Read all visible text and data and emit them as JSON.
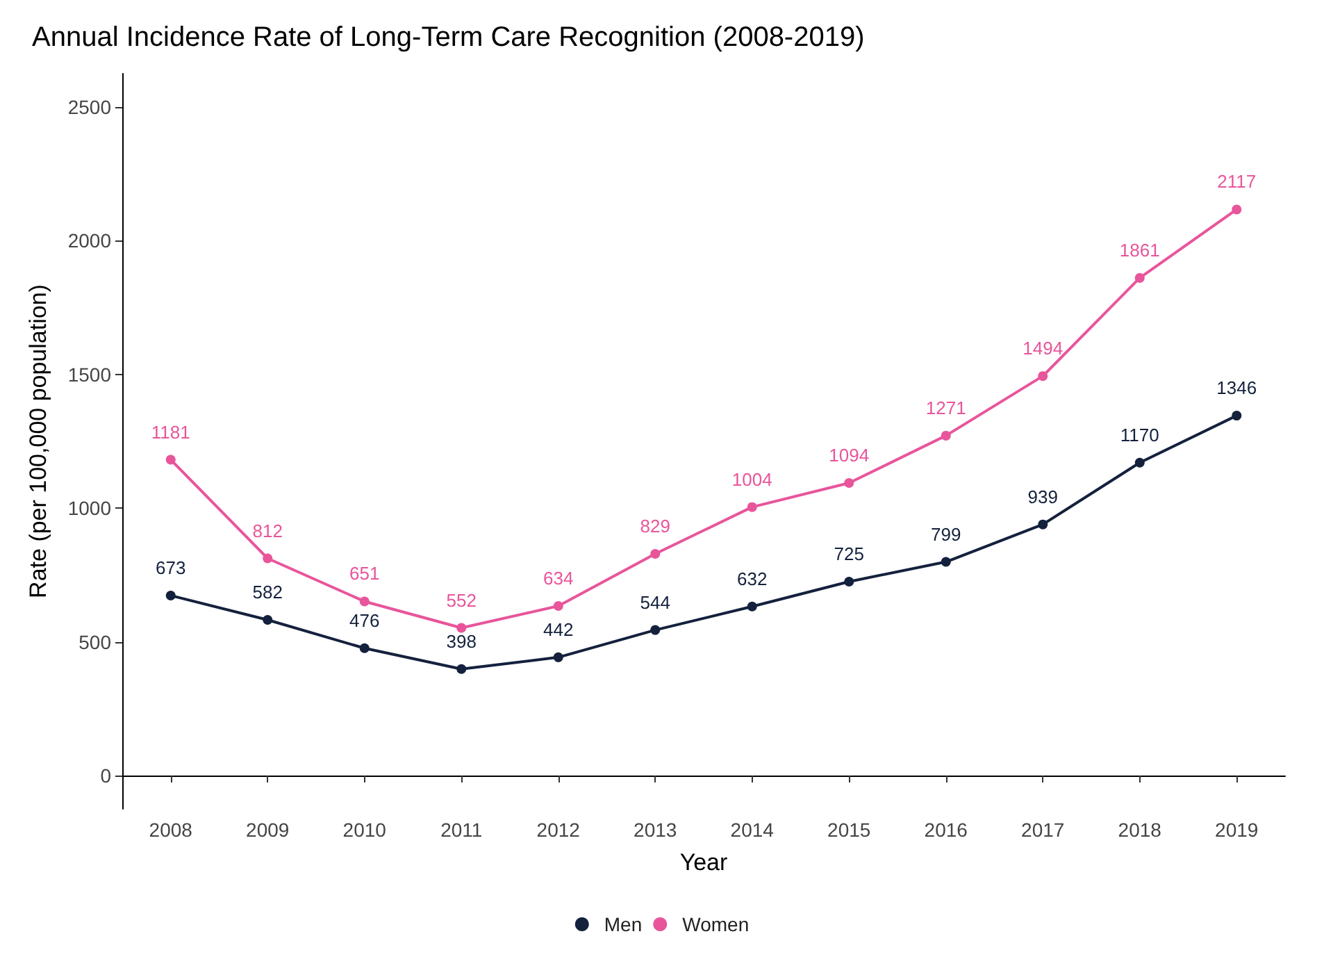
{
  "chart_data": {
    "type": "line",
    "title": "Annual Incidence Rate of Long-Term Care Recognition (2008-2019)",
    "xlabel": "Year",
    "ylabel": "Rate (per 100,000 population)",
    "categories": [
      "2008",
      "2009",
      "2010",
      "2011",
      "2012",
      "2013",
      "2014",
      "2015",
      "2016",
      "2017",
      "2018",
      "2019"
    ],
    "series": [
      {
        "name": "Men",
        "color": "#14213d",
        "values": [
          673,
          582,
          476,
          398,
          442,
          544,
          632,
          725,
          799,
          939,
          1170,
          1346
        ]
      },
      {
        "name": "Women",
        "color": "#e8559b",
        "values": [
          1181,
          812,
          651,
          552,
          634,
          829,
          1004,
          1094,
          1271,
          1494,
          1861,
          2117
        ]
      }
    ],
    "ylim": [
      -125,
      2625
    ],
    "yticks": [
      0,
      500,
      1000,
      1500,
      2000,
      2500
    ],
    "grid": false,
    "legend": "bottom",
    "marker": "circle",
    "line_style": "solid",
    "data_labels": true
  }
}
